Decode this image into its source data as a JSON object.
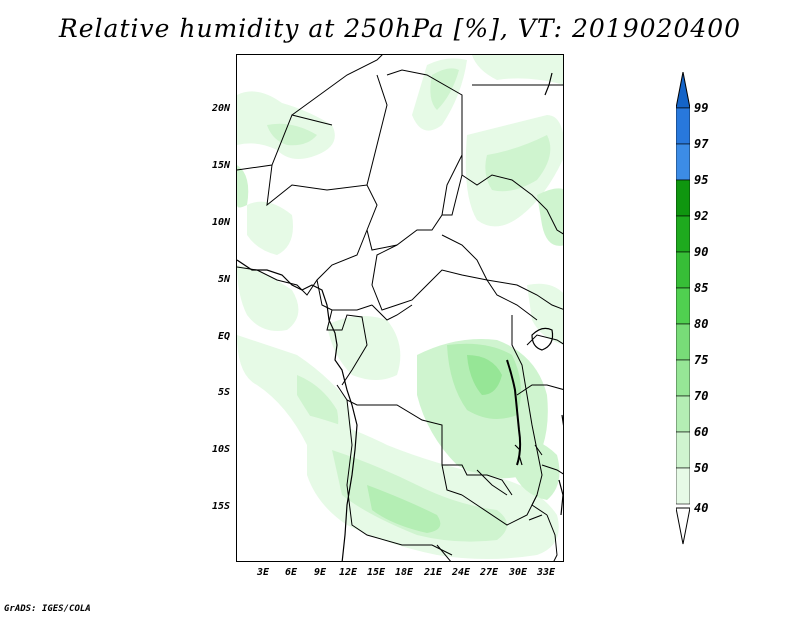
{
  "title": "Relative humidity at 250hPa [%], VT: 2019020400",
  "footer": "GrADS: IGES/COLA",
  "lat_labels": [
    "20N",
    "15N",
    "10N",
    "5N",
    "EQ",
    "5S",
    "10S",
    "15S"
  ],
  "lon_labels": [
    "3E",
    "6E",
    "9E",
    "12E",
    "15E",
    "18E",
    "21E",
    "24E",
    "27E",
    "30E",
    "33E"
  ],
  "colorbar": {
    "levels": [
      "40",
      "50",
      "60",
      "70",
      "75",
      "80",
      "85",
      "90",
      "92",
      "95",
      "97",
      "99"
    ],
    "colors": {
      "below_40": "#ffffff",
      "40_50": "#e6fae6",
      "50_60": "#cff4cf",
      "60_70": "#b4eeb4",
      "70_75": "#96e696",
      "75_80": "#78dc78",
      "80_85": "#50d050",
      "85_90": "#37be37",
      "90_92": "#1eaa1e",
      "92_95": "#0f960f",
      "95_97": "#3c8ce6",
      "97_99": "#2878dc",
      "above_99": "#1464c8"
    }
  }
}
